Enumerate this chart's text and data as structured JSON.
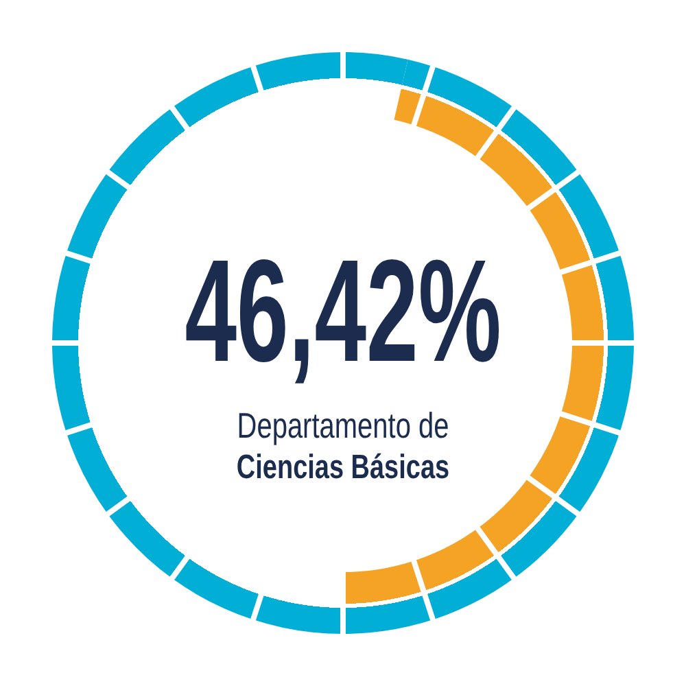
{
  "chart_data": {
    "type": "donut",
    "title": "Departamento de\nCiencias Básicas",
    "categories": [
      null,
      null
    ],
    "values": [
      46.42,
      53.58
    ],
    "colors": [
      "#f5a324",
      "#00aed6"
    ],
    "value_labels": [
      "46,42%",
      null
    ]
  }
}
